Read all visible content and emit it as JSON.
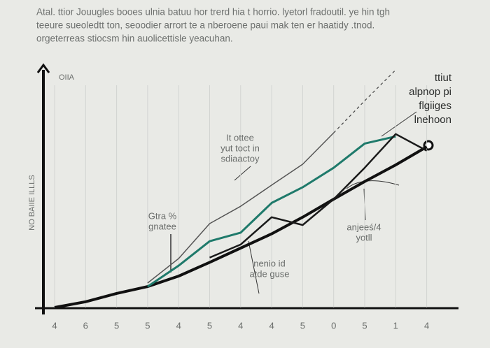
{
  "chart_data": {
    "type": "line",
    "title_lines": [
      "Atal. ttior Jouugles booes ulnia batuu hor trerd hia t horrio. lyetorl fradoutil. ye hin tgh",
      "teeure sueoledtt ton, seoodier arrort te a nberoene paui mak ten er haatidy .tnod.",
      "orgeterreas stiocsm hin auolicettisle yeacuhan."
    ],
    "y_label": "NO BAIIE ILLLS",
    "y_top_label": "OIIA",
    "categories": [
      "4",
      "6",
      "5",
      "5",
      "4",
      "5",
      "4",
      "4",
      "5",
      "0",
      "5",
      "1",
      "4"
    ],
    "ylim": [
      0,
      100
    ],
    "grid": true,
    "series": [
      {
        "color": "#111111",
        "width": 4,
        "values": [
          0,
          2.4,
          5.9,
          8.8,
          13.2,
          19,
          25,
          31,
          38,
          45.6,
          53,
          60,
          67.6
        ]
      },
      {
        "color": "#1f7a6b",
        "width": 3,
        "values": [
          null,
          null,
          null,
          8.8,
          17.6,
          27.9,
          31.5,
          44,
          50.6,
          58.8,
          69,
          72,
          null
        ]
      },
      {
        "color": "#1a1a1a",
        "width": 2.5,
        "values": [
          null,
          null,
          null,
          null,
          null,
          21,
          26.5,
          38,
          34.7,
          45.6,
          58.8,
          73,
          66
        ]
      },
      {
        "color": "#555555",
        "width": 1.5,
        "values": [
          null,
          null,
          null,
          10.3,
          20.6,
          35.3,
          42.6,
          51.5,
          60.3,
          73.5,
          null,
          null,
          null
        ]
      },
      {
        "color": "#444444",
        "width": 1.2,
        "dashed": true,
        "values": [
          null,
          null,
          null,
          null,
          null,
          null,
          null,
          null,
          null,
          73.5,
          87,
          100,
          null
        ]
      }
    ],
    "legend_lines": [
      "ttiut",
      "alpnop pi",
      "flgiiges",
      "lnehoon"
    ],
    "annotations": [
      {
        "lines": [
          "It ottee",
          "yut toct in",
          "sdiaactoy"
        ]
      },
      {
        "lines": [
          "Gtra %",
          "gnatee"
        ]
      },
      {
        "lines": [
          "nenio id",
          "atde guse"
        ]
      },
      {
        "lines": [
          "anjeeś/4",
          "yotll"
        ]
      }
    ]
  }
}
